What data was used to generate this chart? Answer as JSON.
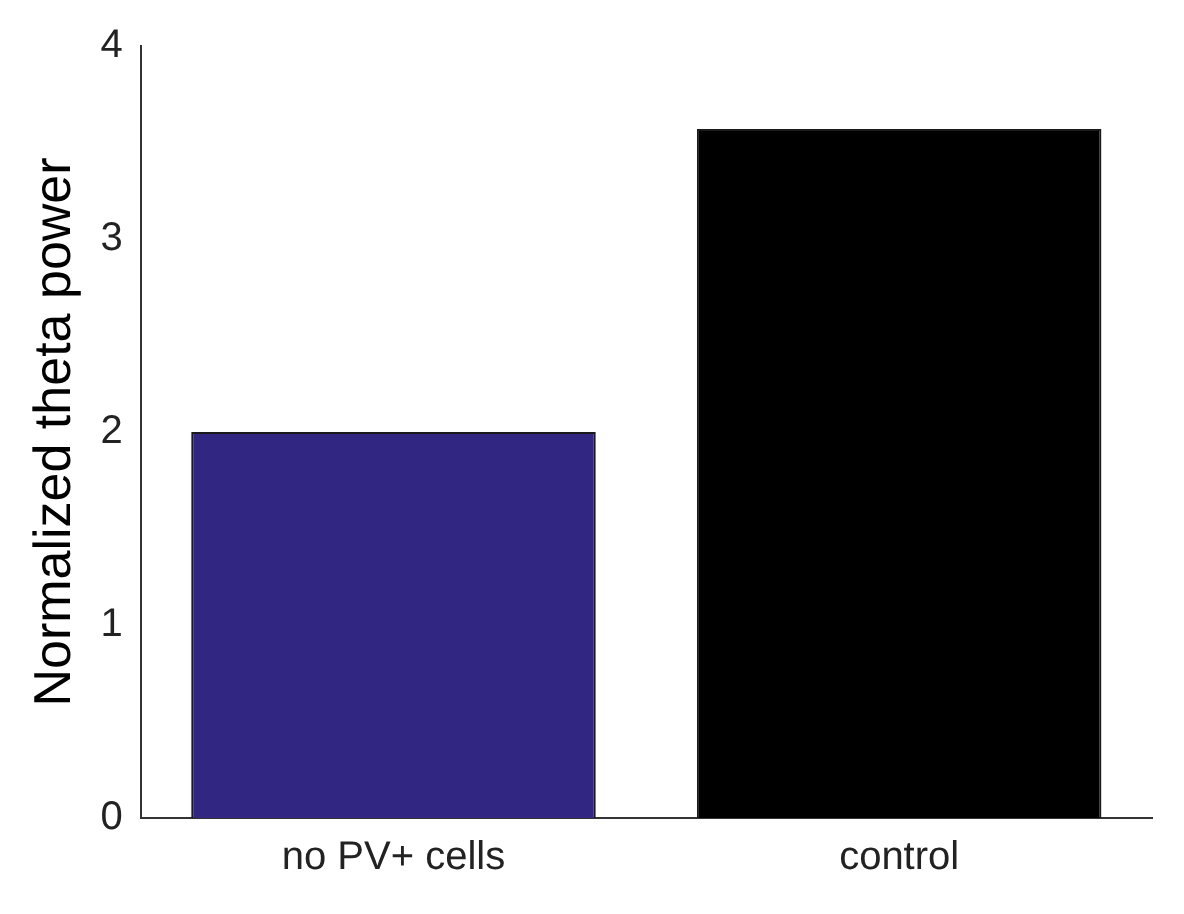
{
  "chart_data": {
    "type": "bar",
    "ylabel": "Normalized theta power",
    "categories": [
      "no PV+ cells",
      "control"
    ],
    "values": [
      2.0,
      3.57
    ],
    "colors": [
      "#312783",
      "#000000"
    ],
    "ylim": [
      0,
      4
    ],
    "yticks": [
      0,
      1,
      2,
      3,
      4
    ],
    "grid": false,
    "legend": false
  }
}
